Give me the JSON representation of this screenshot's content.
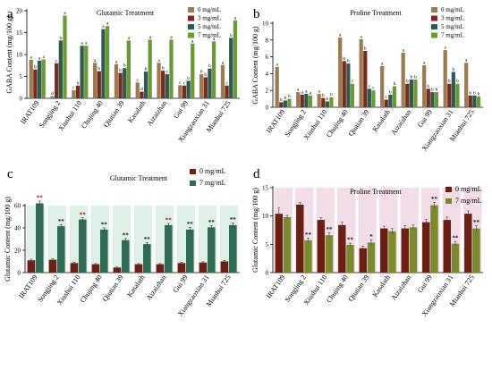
{
  "chart_data": [
    {
      "panel": "a",
      "type": "bar",
      "title": "Glutamic Treatment",
      "ylabel": "GABA Content (mg/100 g)",
      "xlabel": "",
      "ylim": [
        0,
        20
      ],
      "yticks": [
        0,
        5,
        10,
        15,
        20
      ],
      "legend_position": "top-right",
      "categories": [
        "IRAT109",
        "Songjing 2",
        "Xiushui 110",
        "Chujing 40",
        "Qiutian 39",
        "Kasalath",
        "Aizaizhan",
        "Gui 99",
        "Xiangzaoxian 31",
        "Mianhui 725"
      ],
      "series": [
        {
          "name": "0 mg/mL",
          "color": "#9c7b50",
          "values": [
            8.8,
            0.5,
            1.8,
            8.1,
            7.8,
            3.6,
            8.1,
            3.0,
            5.5,
            7.6
          ],
          "letters": [
            "a",
            "d",
            "c",
            "a",
            "a",
            "c",
            "a",
            "c",
            "b",
            "a"
          ]
        },
        {
          "name": "3 mg/mL",
          "color": "#7a2a1c",
          "values": [
            6.6,
            8.0,
            2.9,
            6.2,
            5.8,
            1.5,
            6.3,
            2.9,
            4.8,
            2.9
          ],
          "letters": [
            "b",
            "c",
            "b",
            "b",
            "b",
            "d",
            "b",
            "c",
            "b",
            "c"
          ]
        },
        {
          "name": "5 mg/mL",
          "color": "#2d5b51",
          "values": [
            8.6,
            13.2,
            12.0,
            15.8,
            6.9,
            6.1,
            5.5,
            4.0,
            6.8,
            13.8
          ],
          "letters": [
            "a",
            "b",
            "a",
            "a",
            "b",
            "b",
            "c",
            "b",
            "b",
            "b"
          ]
        },
        {
          "name": "7 mg/mL",
          "color": "#6a9a34",
          "values": [
            8.9,
            18.9,
            12.0,
            16.5,
            13.2,
            13.4,
            13.4,
            12.5,
            13.0,
            17.8
          ],
          "letters": [
            "a",
            "a",
            "a",
            "a",
            "a",
            "a",
            "a",
            "a",
            "a",
            "a"
          ]
        }
      ]
    },
    {
      "panel": "b",
      "type": "bar",
      "title": "Proline Treatment",
      "ylabel": "GABA Content (mg/100 g)",
      "xlabel": "",
      "ylim": [
        0,
        10
      ],
      "yticks": [
        0,
        2,
        4,
        6,
        8,
        10
      ],
      "legend_position": "top-right",
      "categories": [
        "IRAT109",
        "Songjing 2",
        "Xiushui 110",
        "Chujing 40",
        "Qiutian 39",
        "Kasalath",
        "Aizaizhan",
        "Gui 99",
        "Xiangzaoxian 31",
        "Mianhui 725"
      ],
      "series": [
        {
          "name": "0 mg/mL",
          "color": "#9c7b50",
          "values": [
            4.8,
            1.8,
            1.6,
            8.3,
            8.1,
            4.9,
            6.5,
            5.0,
            6.8,
            5.3
          ],
          "letters": [
            "a",
            "a",
            "a",
            "a",
            "a",
            "a",
            "a",
            "a",
            "a",
            "a"
          ]
        },
        {
          "name": "3 mg/mL",
          "color": "#7a2a1c",
          "values": [
            0.6,
            1.5,
            1.1,
            5.5,
            6.7,
            0.9,
            2.8,
            2.2,
            2.8,
            1.4
          ],
          "letters": [
            "b",
            "a",
            "b",
            "b",
            "b",
            "c",
            "b",
            "b",
            "b",
            "b"
          ]
        },
        {
          "name": "5 mg/mL",
          "color": "#2d5b51",
          "values": [
            0.8,
            1.6,
            0.7,
            5.2,
            2.2,
            1.5,
            3.3,
            1.8,
            4.2,
            1.4
          ],
          "letters": [
            "b",
            "a",
            "b",
            "b",
            "c",
            "b",
            "b",
            "b",
            "b",
            "b"
          ]
        },
        {
          "name": "7 mg/mL",
          "color": "#6a9a34",
          "values": [
            1.0,
            1.4,
            1.2,
            2.8,
            2.0,
            2.5,
            3.3,
            1.8,
            2.8,
            1.3
          ],
          "letters": [
            "b",
            "a",
            "b",
            "c",
            "c",
            "b",
            "b",
            "b",
            "b",
            "b"
          ]
        }
      ]
    },
    {
      "panel": "c",
      "type": "bar",
      "title": "Glutamic Treatment",
      "ylabel": "Glutamic Content (mg/100 g)",
      "xlabel": "",
      "ylim": [
        0,
        60
      ],
      "yticks": [
        0,
        20,
        40,
        60
      ],
      "legend_position": "top-right",
      "categories": [
        "IRAT109",
        "Songjing 2",
        "Xiushui 110",
        "Chujing 40",
        "Qiutian 39",
        "Kasalath",
        "Aizaizhan",
        "Gui 99",
        "Xiangzaoxian 31",
        "Mianhui 725"
      ],
      "series": [
        {
          "name": "0 mg/mL",
          "color": "#6e1f14",
          "values": [
            11,
            11.5,
            8.5,
            7.5,
            4.5,
            7.5,
            7.5,
            8.5,
            9,
            10
          ],
          "errors": [
            1,
            0.8,
            0.8,
            0.6,
            0.5,
            0.6,
            0.6,
            0.6,
            0.7,
            0.8
          ]
        },
        {
          "name": "7 mg/mL",
          "color": "#2d6b55",
          "values": [
            62,
            41.5,
            47.5,
            38.5,
            29,
            25.5,
            42.5,
            38.5,
            40.5,
            42.5
          ],
          "errors": [
            2,
            1.5,
            1.5,
            1.5,
            1.5,
            1.5,
            1.5,
            2,
            1.5,
            2
          ],
          "marks": [
            "**",
            "**",
            "**",
            "**",
            "**",
            "**",
            "**",
            "**",
            "**",
            "**"
          ]
        }
      ]
    },
    {
      "panel": "d",
      "type": "bar",
      "title": "Proline Treatment",
      "ylabel": "Glutamic Content (mg/100 g)",
      "xlabel": "",
      "ylim": [
        0,
        15
      ],
      "yticks": [
        0,
        5,
        10,
        15
      ],
      "legend_position": "top-right",
      "categories": [
        "IRAT109",
        "Songjing 2",
        "Xiushui 110",
        "Chujing 40",
        "Qiutian 39",
        "Kasalath",
        "Aizaizhan",
        "Gui 99",
        "Xiangzaoxian 31",
        "Mianhui 725"
      ],
      "series": [
        {
          "name": "0 mg/mL",
          "color": "#6e1f14",
          "values": [
            10.4,
            12.0,
            9.3,
            8.4,
            4.3,
            7.8,
            7.8,
            8.9,
            9.3,
            10.4
          ],
          "errors": [
            1.0,
            0.4,
            0.4,
            0.5,
            0.4,
            0.4,
            0.5,
            0.5,
            0.5,
            0.5
          ]
        },
        {
          "name": "7 mg/mL",
          "color": "#7b8a2a",
          "values": [
            9.8,
            5.7,
            6.6,
            4.9,
            5.3,
            7.3,
            8.0,
            11.9,
            5.1,
            7.8
          ],
          "errors": [
            0.3,
            0.4,
            0.4,
            0.3,
            0.5,
            0.5,
            0.4,
            0.5,
            0.4,
            0.5
          ],
          "marks": [
            "",
            "**",
            "**",
            "**",
            "*",
            "",
            "",
            "**",
            "**",
            "**"
          ]
        }
      ]
    }
  ]
}
